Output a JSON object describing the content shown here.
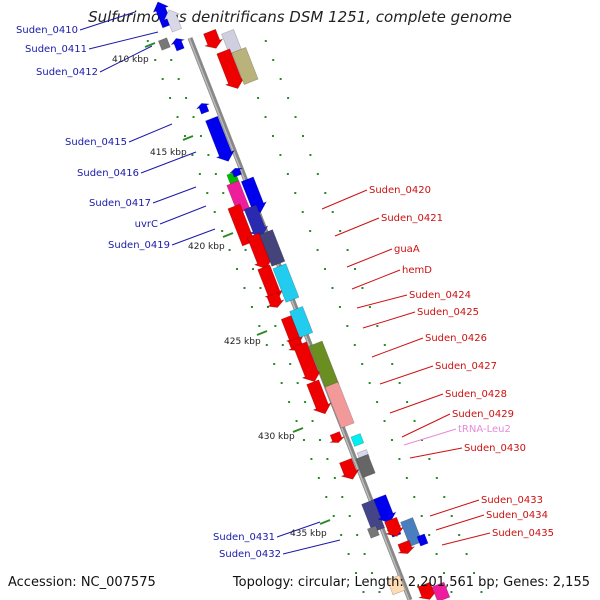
{
  "title": "Sulfurimonas denitrificans DSM 1251, complete genome",
  "footer": {
    "accession": "Accession: NC_007575",
    "stats": "Topology: circular; Length: 2,201,561 bp; Genes: 2,155"
  },
  "colors": {
    "backbone": "#888888",
    "left_labels": "#1a1aa8",
    "right_labels": "#cc1111",
    "trna_label": "#e58ad9",
    "tick": "#2a8a2a"
  },
  "scale_ticks": [
    "410 kbp",
    "415 kbp",
    "420 kbp",
    "425 kbp",
    "430 kbp",
    "435 kbp"
  ],
  "left_labels": [
    "Suden_0410",
    "Suden_0411",
    "Suden_0412",
    "Suden_0415",
    "Suden_0416",
    "Suden_0417",
    "uvrC",
    "Suden_0419",
    "Suden_0431",
    "Suden_0432"
  ],
  "right_labels": [
    "Suden_0420",
    "Suden_0421",
    "guaA",
    "hemD",
    "Suden_0424",
    "Suden_0425",
    "Suden_0426",
    "Suden_0427",
    "Suden_0428",
    "Suden_0429",
    "tRNA-Leu2",
    "Suden_0430",
    "Suden_0433",
    "Suden_0434",
    "Suden_0435"
  ]
}
